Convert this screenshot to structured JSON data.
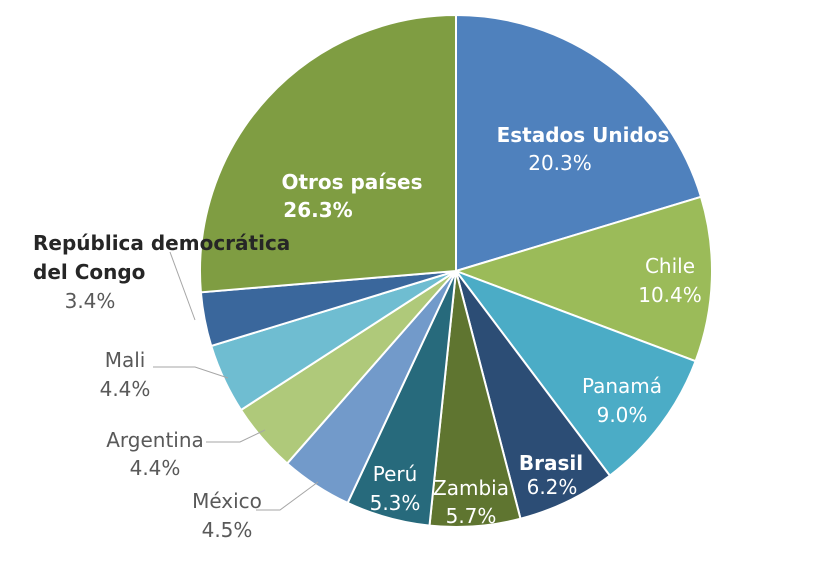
{
  "chart_data": {
    "type": "pie",
    "title": "",
    "unit": "%",
    "slices": [
      {
        "label": "Estados Unidos",
        "value": 20.3,
        "value_text": "20.3%",
        "color": "#4F81BD"
      },
      {
        "label": "Chile",
        "value": 10.4,
        "value_text": "10.4%",
        "color": "#9BBB59"
      },
      {
        "label": "Panamá",
        "value": 9.0,
        "value_text": "9.0%",
        "color": "#4BACC6"
      },
      {
        "label": "Brasil",
        "value": 6.2,
        "value_text": "6.2%",
        "color": "#2C4D75"
      },
      {
        "label": "Zambia",
        "value": 5.7,
        "value_text": "5.7%",
        "color": "#5F7530"
      },
      {
        "label": "Perú",
        "value": 5.3,
        "value_text": "5.3%",
        "color": "#276A7C"
      },
      {
        "label": "México",
        "value": 4.5,
        "value_text": "4.5%",
        "color": "#729ACA"
      },
      {
        "label": "Argentina",
        "value": 4.4,
        "value_text": "4.4%",
        "color": "#AFC97A"
      },
      {
        "label": "Mali",
        "value": 4.4,
        "value_text": "4.4%",
        "color": "#6FBDD1"
      },
      {
        "label": "República democrática del Congo",
        "value": 3.4,
        "value_text": "3.4%",
        "color": "#3A679C"
      },
      {
        "label": "Otros países",
        "value": 26.3,
        "value_text": "26.3%",
        "color": "#7F9D42"
      }
    ]
  }
}
